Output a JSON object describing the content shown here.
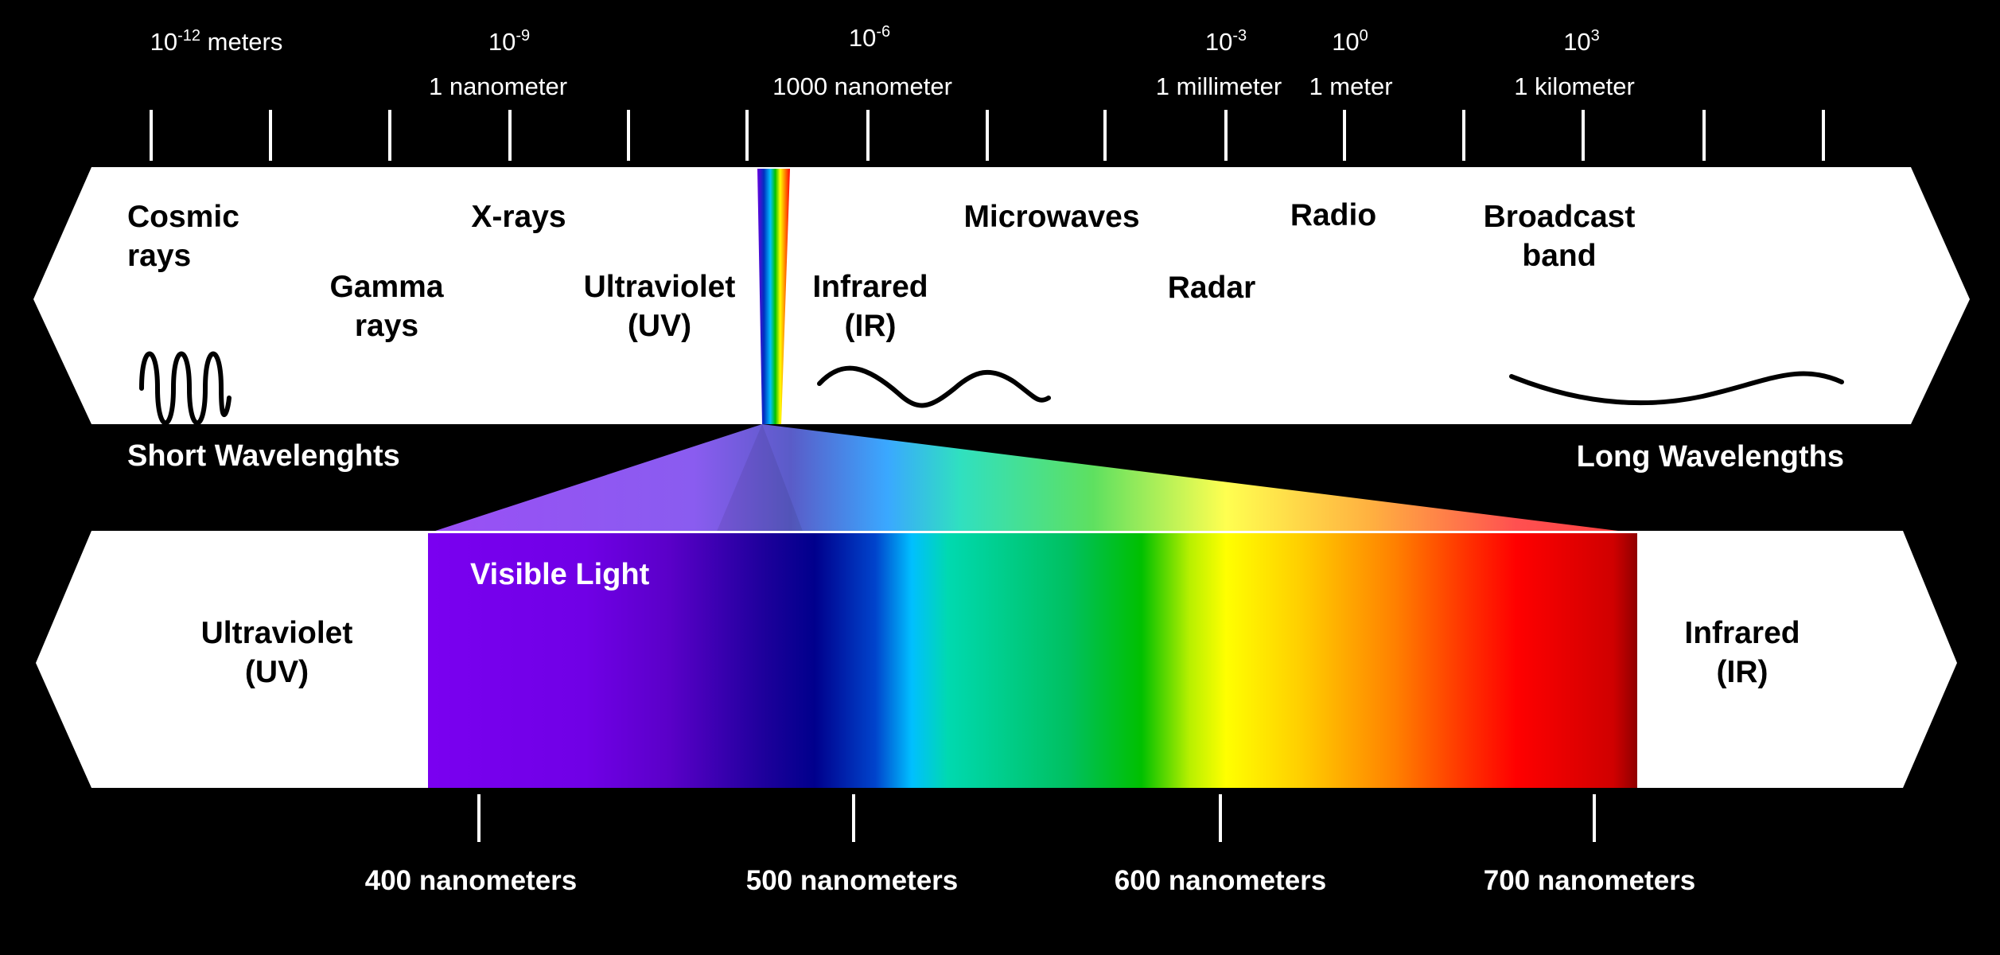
{
  "scale": {
    "ticks": [
      {
        "exp": "-12",
        "base": "10",
        "unit": " meters",
        "name": ""
      },
      {
        "exp": "-9",
        "base": "10",
        "unit": "",
        "name": "1 nanometer"
      },
      {
        "exp": "-6",
        "base": "10",
        "unit": "",
        "name": "1000 nanometer"
      },
      {
        "exp": "-3",
        "base": "10",
        "unit": "",
        "name": "1 millimeter"
      },
      {
        "exp": "0",
        "base": "10",
        "unit": "",
        "name": "1 meter"
      },
      {
        "exp": "3",
        "base": "10",
        "unit": "",
        "name": "1 kilometer"
      }
    ]
  },
  "bands": {
    "cosmic": [
      "Cosmic",
      "rays"
    ],
    "gamma": [
      "Gamma",
      "rays"
    ],
    "xrays": [
      "X-rays"
    ],
    "uv": [
      "Ultraviolet",
      "(UV)"
    ],
    "ir": [
      "Infrared",
      "(IR)"
    ],
    "microwaves": [
      "Microwaves"
    ],
    "radar": [
      "Radar"
    ],
    "radio": [
      "Radio"
    ],
    "broadcast": [
      "Broadcast",
      "band"
    ]
  },
  "wavelength_labels": {
    "short": "Short Wavelenghts",
    "long": "Long Wavelengths"
  },
  "visible": {
    "title": "Visible Light",
    "uv": [
      "Ultraviolet",
      "(UV)"
    ],
    "ir": [
      "Infrared",
      "(IR)"
    ],
    "nm_ticks": [
      "400 nanometers",
      "500 nanometers",
      "600 nanometers",
      "700 nanometers"
    ]
  },
  "colors": {
    "background": "#000000",
    "band_fill": "#ffffff",
    "spectrum": [
      "#7a00f0",
      "#7000e6",
      "#5a00c8",
      "#1c009a",
      "#00008c",
      "#0044cc",
      "#00bfff",
      "#00d9b0",
      "#00c060",
      "#00c000",
      "#b8f000",
      "#ffff00",
      "#ffd000",
      "#ff8000",
      "#ff3000",
      "#ff0000",
      "#c00000"
    ]
  }
}
